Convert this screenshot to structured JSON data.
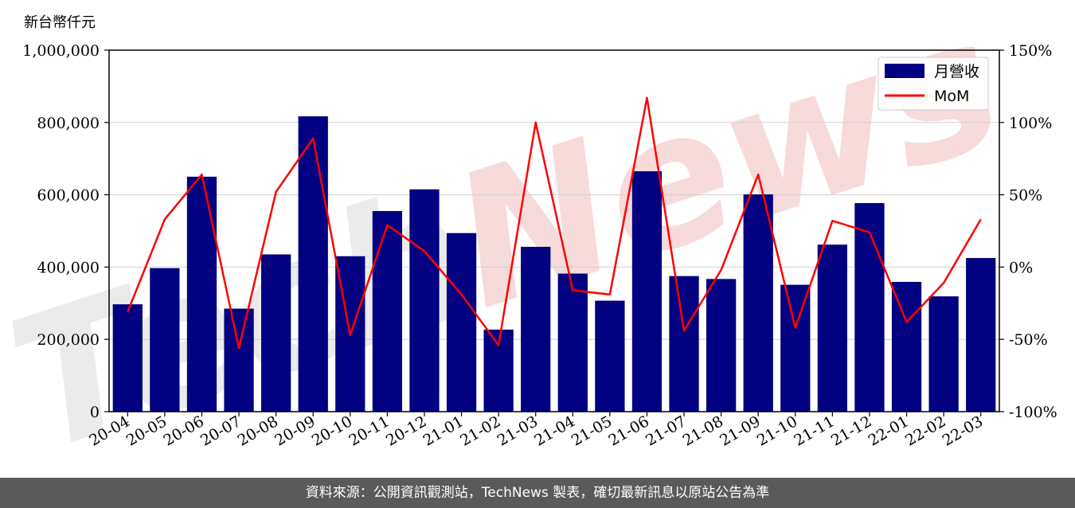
{
  "header": {
    "unit_label": "新台幣仟元"
  },
  "footer": {
    "source_text": "資料來源：公開資訊觀測站，TechNews 製表，確切最新訊息以原站公告為準"
  },
  "watermark": {
    "prefix": "Tech",
    "suffix": "News"
  },
  "colors": {
    "bar": "#000080",
    "line": "#ff0000",
    "grid": "#d0d0d0",
    "footer_bg": "#5a5a5a"
  },
  "chart_data": {
    "type": "bar",
    "title": "",
    "categories": [
      "20-04",
      "20-05",
      "20-06",
      "20-07",
      "20-08",
      "20-09",
      "20-10",
      "20-11",
      "20-12",
      "21-01",
      "21-02",
      "21-03",
      "21-04",
      "21-05",
      "21-06",
      "21-07",
      "21-08",
      "21-09",
      "21-10",
      "21-11",
      "21-12",
      "22-01",
      "22-02",
      "22-03"
    ],
    "series": [
      {
        "name": "月營收",
        "type": "bar",
        "axis": "left",
        "values": [
          297000,
          397000,
          650000,
          285000,
          435000,
          817000,
          430000,
          555000,
          615000,
          494000,
          227000,
          456000,
          382000,
          307000,
          665000,
          375000,
          367000,
          601000,
          351000,
          462000,
          577000,
          359000,
          319000,
          425000
        ]
      },
      {
        "name": "MoM",
        "type": "line",
        "axis": "right",
        "values": [
          -31,
          33,
          64,
          -56,
          52,
          89,
          -47,
          29,
          11,
          -19,
          -54,
          100,
          -16,
          -19,
          117,
          -44,
          -2,
          64,
          -42,
          32,
          24,
          -38,
          -11,
          33
        ]
      }
    ],
    "ylim_left": [
      0,
      1000000
    ],
    "yticks_left": [
      "0",
      "200,000",
      "400,000",
      "600,000",
      "800,000",
      "1,000,000"
    ],
    "yticks_left_values": [
      0,
      200000,
      400000,
      600000,
      800000,
      1000000
    ],
    "ylim_right": [
      -100,
      150
    ],
    "yticks_right": [
      "-100%",
      "-50%",
      "0%",
      "50%",
      "100%",
      "150%"
    ],
    "yticks_right_values": [
      -100,
      -50,
      0,
      50,
      100,
      150
    ],
    "grid": true,
    "legend_position": "top-right"
  }
}
